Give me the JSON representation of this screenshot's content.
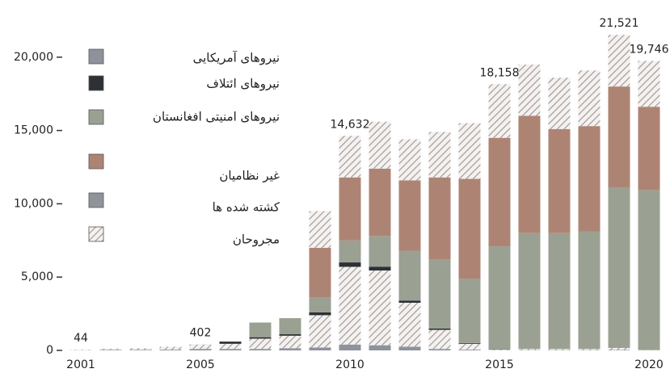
{
  "chart_data": {
    "type": "stacked-bar",
    "categories": [
      "2001",
      null,
      null,
      null,
      "2005",
      null,
      null,
      null,
      null,
      "2010",
      null,
      null,
      null,
      null,
      "2015",
      null,
      null,
      null,
      null,
      "2020"
    ],
    "series": [
      {
        "color": "#8d929c",
        "hatched": false,
        "values": [
          12,
          40,
          40,
          50,
          100,
          100,
          100,
          150,
          200,
          400,
          350,
          250,
          100,
          50,
          20,
          20,
          20,
          20,
          30,
          0
        ]
      },
      {
        "color": "#8d929c",
        "hatched": true,
        "values": [
          32,
          80,
          110,
          200,
          300,
          350,
          700,
          850,
          2200,
          5300,
          5100,
          3000,
          1300,
          400,
          50,
          80,
          80,
          80,
          150,
          20
        ]
      },
      {
        "color": "#2d3035",
        "hatched": false,
        "values": [
          0,
          0,
          0,
          0,
          2,
          150,
          100,
          100,
          200,
          300,
          250,
          150,
          100,
          50,
          30,
          0,
          0,
          0,
          20,
          0
        ]
      },
      {
        "color": "#9ba192",
        "hatched": false,
        "values": [
          0,
          0,
          0,
          0,
          0,
          0,
          1000,
          1100,
          1000,
          1500,
          2100,
          3400,
          4700,
          4400,
          7000,
          7900,
          7900,
          8000,
          10900,
          10900
        ]
      },
      {
        "color": "#ad8474",
        "hatched": false,
        "values": [
          0,
          0,
          0,
          0,
          0,
          0,
          0,
          0,
          3400,
          4300,
          4600,
          4800,
          5600,
          6800,
          7400,
          8000,
          7100,
          7200,
          6900,
          5700
        ]
      },
      {
        "color": "#ad8474",
        "hatched": true,
        "values": [
          0,
          0,
          0,
          0,
          0,
          0,
          0,
          0,
          2500,
          2832,
          3200,
          2800,
          3100,
          3800,
          3658,
          3500,
          3500,
          3800,
          3521,
          3126
        ]
      }
    ],
    "totals": [
      44,
      null,
      null,
      null,
      402,
      null,
      null,
      null,
      null,
      14632,
      null,
      null,
      null,
      null,
      18158,
      null,
      null,
      null,
      21521,
      19746
    ],
    "total_labels": [
      "44",
      null,
      null,
      null,
      "402",
      null,
      null,
      null,
      null,
      "14,632",
      null,
      null,
      null,
      null,
      "18,158",
      null,
      null,
      null,
      "21,521",
      "19,746"
    ],
    "legend": [
      {
        "label": "نیروهای آمریکایی",
        "color": "#8d929c",
        "hatched": false
      },
      {
        "label": "نیروهای ائتلاف",
        "color": "#2d3035",
        "hatched": false
      },
      {
        "label": "نیروهای امنیتی افغانستان",
        "color": "#9ba192",
        "hatched": false
      },
      {
        "label": "غیر نظامیان",
        "color": "#ad8474",
        "hatched": false
      },
      {
        "label": "کشته شده ها",
        "color": "#8f949b",
        "hatched": false
      },
      {
        "label": "مجروحان",
        "color": "#8f949b",
        "hatched": true
      }
    ],
    "ylim": [
      0,
      23900
    ],
    "yticks": [
      {
        "value": 0,
        "label": "0"
      },
      {
        "value": 5000,
        "label": "5,000"
      },
      {
        "value": 10000,
        "label": "10,000"
      },
      {
        "value": 15000,
        "label": "15,000"
      },
      {
        "value": 20000,
        "label": "20,000"
      }
    ]
  }
}
